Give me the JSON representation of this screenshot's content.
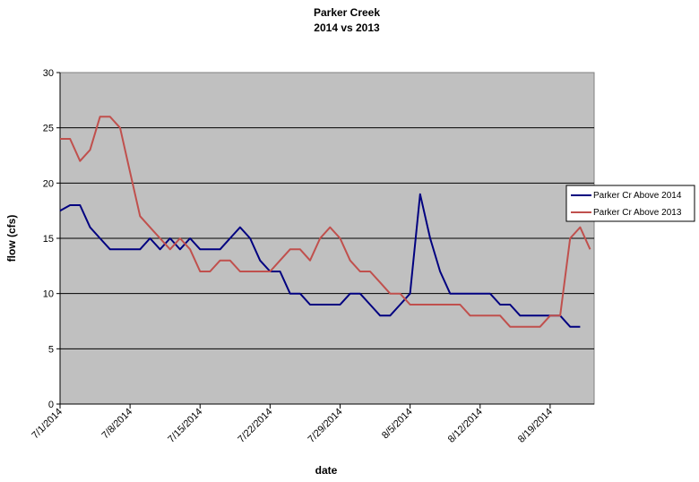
{
  "chart_data": {
    "type": "line",
    "title": "Parker Creek",
    "subtitle": "2014 vs 2013",
    "xlabel": "date",
    "ylabel": "flow (cfs)",
    "ylim": [
      0,
      30
    ],
    "yticks": [
      0,
      5,
      10,
      15,
      20,
      25,
      30
    ],
    "xlim": [
      "7/1/2014",
      "8/23/2014"
    ],
    "xticks": [
      "7/1/2014",
      "7/8/2014",
      "7/15/2014",
      "7/22/2014",
      "7/29/2014",
      "8/5/2014",
      "8/12/2014",
      "8/19/2014"
    ],
    "grid": true,
    "legend_position": "right",
    "plot_background": "#c0c0c0",
    "x": [
      "7/1/2014",
      "7/2/2014",
      "7/3/2014",
      "7/4/2014",
      "7/5/2014",
      "7/6/2014",
      "7/7/2014",
      "7/8/2014",
      "7/9/2014",
      "7/10/2014",
      "7/11/2014",
      "7/12/2014",
      "7/13/2014",
      "7/14/2014",
      "7/15/2014",
      "7/16/2014",
      "7/17/2014",
      "7/18/2014",
      "7/19/2014",
      "7/20/2014",
      "7/21/2014",
      "7/22/2014",
      "7/23/2014",
      "7/24/2014",
      "7/25/2014",
      "7/26/2014",
      "7/27/2014",
      "7/28/2014",
      "7/29/2014",
      "7/30/2014",
      "7/31/2014",
      "8/1/2014",
      "8/2/2014",
      "8/3/2014",
      "8/4/2014",
      "8/5/2014",
      "8/6/2014",
      "8/7/2014",
      "8/8/2014",
      "8/9/2014",
      "8/10/2014",
      "8/11/2014",
      "8/12/2014",
      "8/13/2014",
      "8/14/2014",
      "8/15/2014",
      "8/16/2014",
      "8/17/2014",
      "8/18/2014",
      "8/19/2014",
      "8/20/2014",
      "8/21/2014",
      "8/22/2014",
      "8/23/2014"
    ],
    "series": [
      {
        "name": "Parker Cr Above 2014",
        "color": "#000080",
        "values": [
          17.5,
          18,
          18,
          16,
          15,
          14,
          14,
          14,
          14,
          15,
          14,
          15,
          14,
          15,
          14,
          14,
          14,
          15,
          16,
          15,
          13,
          12,
          12,
          10,
          10,
          9,
          9,
          9,
          9,
          10,
          10,
          9,
          8,
          8,
          9,
          10,
          19,
          15,
          12,
          10,
          10,
          10,
          10,
          10,
          9,
          9,
          8,
          8,
          8,
          8,
          8,
          7,
          7,
          null
        ]
      },
      {
        "name": "Parker Cr Above 2013",
        "color": "#c0504d",
        "values": [
          24,
          24,
          22,
          23,
          26,
          26,
          25,
          21,
          17,
          16,
          15,
          14,
          15,
          14,
          12,
          12,
          13,
          13,
          12,
          12,
          12,
          12,
          13,
          14,
          14,
          13,
          15,
          16,
          15,
          13,
          12,
          12,
          11,
          10,
          10,
          9,
          9,
          9,
          9,
          9,
          9,
          8,
          8,
          8,
          8,
          7,
          7,
          7,
          7,
          8,
          8,
          15,
          16,
          14
        ]
      }
    ]
  }
}
